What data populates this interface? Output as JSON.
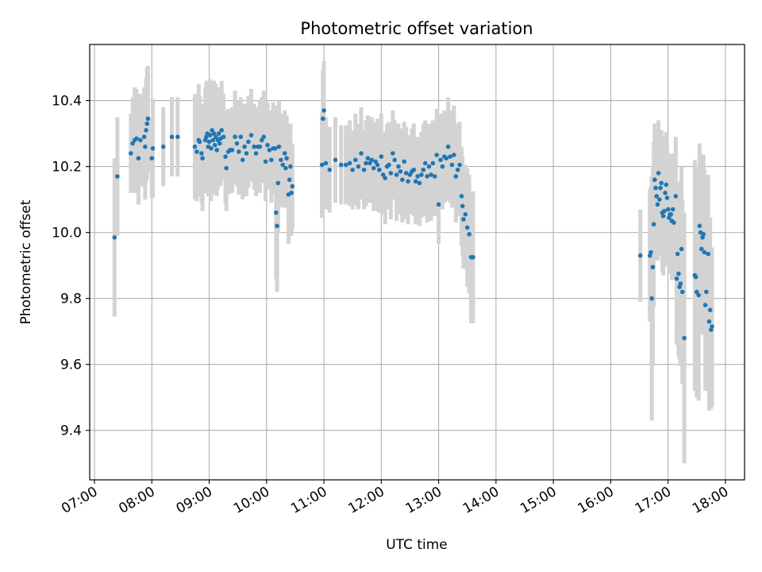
{
  "chart_data": {
    "type": "scatter",
    "title": "Photometric offset variation",
    "xlabel": "UTC time",
    "ylabel": "Photometric offset",
    "xlim": [
      "06:55",
      "18:20"
    ],
    "ylim": [
      9.25,
      10.57
    ],
    "x_ticks": [
      "07:00",
      "08:00",
      "09:00",
      "10:00",
      "11:00",
      "12:00",
      "13:00",
      "14:00",
      "15:00",
      "16:00",
      "17:00",
      "18:00"
    ],
    "y_ticks": [
      "9.4",
      "9.6",
      "9.8",
      "10.0",
      "10.2",
      "10.4"
    ],
    "grid": true,
    "legend": "none",
    "colors": {
      "point": "#1f77b4",
      "errorbar": "#d3d3d3",
      "grid": "#b0b0b0"
    },
    "series": [
      {
        "points": [
          [
            "07:21",
            9.985,
            0.24
          ],
          [
            "07:24",
            10.17,
            0.18
          ],
          [
            "07:38",
            10.24,
            0.12
          ],
          [
            "07:40",
            10.27,
            0.14
          ],
          [
            "07:42",
            10.28,
            0.16
          ],
          [
            "07:44",
            10.285,
            0.15
          ],
          [
            "07:46",
            10.225,
            0.14
          ],
          [
            "07:48",
            10.28,
            0.14
          ],
          [
            "07:52",
            10.29,
            0.15
          ],
          [
            "07:53",
            10.26,
            0.16
          ],
          [
            "07:54",
            10.31,
            0.16
          ],
          [
            "07:55",
            10.33,
            0.17
          ],
          [
            "07:56",
            10.345,
            0.16
          ],
          [
            "08:00",
            10.225,
            0.12
          ],
          [
            "08:01",
            10.255,
            0.15
          ],
          [
            "08:12",
            10.26,
            0.12
          ],
          [
            "08:21",
            10.29,
            0.12
          ],
          [
            "08:27",
            10.29,
            0.12
          ],
          [
            "08:45",
            10.26,
            0.16
          ],
          [
            "08:47",
            10.245,
            0.15
          ],
          [
            "08:49",
            10.28,
            0.17
          ],
          [
            "08:50",
            10.275,
            0.14
          ],
          [
            "08:52",
            10.24,
            0.15
          ],
          [
            "08:53",
            10.225,
            0.16
          ],
          [
            "08:56",
            10.28,
            0.16
          ],
          [
            "08:57",
            10.29,
            0.17
          ],
          [
            "08:58",
            10.3,
            0.16
          ],
          [
            "08:59",
            10.26,
            0.15
          ],
          [
            "09:00",
            10.275,
            0.16
          ],
          [
            "09:01",
            10.295,
            0.17
          ],
          [
            "09:02",
            10.255,
            0.16
          ],
          [
            "09:03",
            10.31,
            0.15
          ],
          [
            "09:04",
            10.28,
            0.14
          ],
          [
            "09:05",
            10.3,
            0.16
          ],
          [
            "09:06",
            10.265,
            0.15
          ],
          [
            "09:07",
            10.29,
            0.16
          ],
          [
            "09:08",
            10.25,
            0.14
          ],
          [
            "09:09",
            10.28,
            0.15
          ],
          [
            "09:10",
            10.3,
            0.14
          ],
          [
            "09:11",
            10.27,
            0.13
          ],
          [
            "09:12",
            10.285,
            0.14
          ],
          [
            "09:13",
            10.31,
            0.15
          ],
          [
            "09:15",
            10.29,
            0.13
          ],
          [
            "09:17",
            10.23,
            0.14
          ],
          [
            "09:18",
            10.195,
            0.13
          ],
          [
            "09:20",
            10.245,
            0.13
          ],
          [
            "09:22",
            10.25,
            0.12
          ],
          [
            "09:24",
            10.25,
            0.13
          ],
          [
            "09:27",
            10.29,
            0.14
          ],
          [
            "09:29",
            10.27,
            0.13
          ],
          [
            "09:31",
            10.245,
            0.13
          ],
          [
            "09:33",
            10.29,
            0.12
          ],
          [
            "09:35",
            10.22,
            0.12
          ],
          [
            "09:37",
            10.26,
            0.13
          ],
          [
            "09:39",
            10.24,
            0.13
          ],
          [
            "09:41",
            10.275,
            0.14
          ],
          [
            "09:44",
            10.295,
            0.14
          ],
          [
            "09:47",
            10.26,
            0.13
          ],
          [
            "09:49",
            10.24,
            0.13
          ],
          [
            "09:51",
            10.26,
            0.12
          ],
          [
            "09:53",
            10.26,
            0.14
          ],
          [
            "09:55",
            10.28,
            0.13
          ],
          [
            "09:57",
            10.29,
            0.14
          ],
          [
            "09:59",
            10.215,
            0.12
          ],
          [
            "10:01",
            10.265,
            0.13
          ],
          [
            "10:03",
            10.25,
            0.12
          ],
          [
            "10:05",
            10.22,
            0.13
          ],
          [
            "10:07",
            10.255,
            0.14
          ],
          [
            "10:09",
            10.255,
            0.13
          ],
          [
            "10:10",
            10.06,
            0.2
          ],
          [
            "10:11",
            10.02,
            0.2
          ],
          [
            "10:12",
            10.15,
            0.15
          ],
          [
            "10:13",
            10.26,
            0.14
          ],
          [
            "10:15",
            10.22,
            0.14
          ],
          [
            "10:17",
            10.205,
            0.13
          ],
          [
            "10:19",
            10.24,
            0.13
          ],
          [
            "10:20",
            10.195,
            0.12
          ],
          [
            "10:21",
            10.225,
            0.13
          ],
          [
            "10:23",
            10.115,
            0.15
          ],
          [
            "10:24",
            10.16,
            0.14
          ],
          [
            "10:25",
            10.2,
            0.13
          ],
          [
            "10:26",
            10.12,
            0.13
          ],
          [
            "10:27",
            10.14,
            0.13
          ],
          [
            "10:58",
            10.205,
            0.16
          ],
          [
            "10:59",
            10.345,
            0.15
          ],
          [
            "11:00",
            10.37,
            0.15
          ],
          [
            "11:02",
            10.21,
            0.14
          ],
          [
            "11:06",
            10.19,
            0.13
          ],
          [
            "11:12",
            10.22,
            0.13
          ],
          [
            "11:18",
            10.205,
            0.12
          ],
          [
            "11:23",
            10.205,
            0.12
          ],
          [
            "11:27",
            10.21,
            0.13
          ],
          [
            "11:30",
            10.19,
            0.12
          ],
          [
            "11:33",
            10.22,
            0.14
          ],
          [
            "11:36",
            10.2,
            0.13
          ],
          [
            "11:39",
            10.24,
            0.14
          ],
          [
            "11:42",
            10.19,
            0.12
          ],
          [
            "11:44",
            10.21,
            0.13
          ],
          [
            "11:46",
            10.225,
            0.13
          ],
          [
            "11:48",
            10.21,
            0.12
          ],
          [
            "11:50",
            10.22,
            0.13
          ],
          [
            "11:52",
            10.195,
            0.13
          ],
          [
            "11:54",
            10.215,
            0.12
          ],
          [
            "11:56",
            10.205,
            0.14
          ],
          [
            "11:58",
            10.19,
            0.13
          ],
          [
            "12:00",
            10.23,
            0.13
          ],
          [
            "12:02",
            10.175,
            0.12
          ],
          [
            "12:04",
            10.165,
            0.14
          ],
          [
            "12:06",
            10.2,
            0.13
          ],
          [
            "12:08",
            10.205,
            0.13
          ],
          [
            "12:10",
            10.18,
            0.14
          ],
          [
            "12:12",
            10.24,
            0.13
          ],
          [
            "12:14",
            10.22,
            0.12
          ],
          [
            "12:16",
            10.175,
            0.14
          ],
          [
            "12:18",
            10.2,
            0.13
          ],
          [
            "12:20",
            10.185,
            0.13
          ],
          [
            "12:22",
            10.16,
            0.13
          ],
          [
            "12:24",
            10.215,
            0.12
          ],
          [
            "12:26",
            10.18,
            0.14
          ],
          [
            "12:28",
            10.155,
            0.13
          ],
          [
            "12:30",
            10.175,
            0.12
          ],
          [
            "12:32",
            10.185,
            0.13
          ],
          [
            "12:34",
            10.19,
            0.14
          ],
          [
            "12:36",
            10.155,
            0.13
          ],
          [
            "12:38",
            10.17,
            0.12
          ],
          [
            "12:40",
            10.15,
            0.13
          ],
          [
            "12:42",
            10.175,
            0.13
          ],
          [
            "12:44",
            10.19,
            0.14
          ],
          [
            "12:46",
            10.21,
            0.13
          ],
          [
            "12:48",
            10.17,
            0.14
          ],
          [
            "12:50",
            10.2,
            0.13
          ],
          [
            "12:52",
            10.175,
            0.14
          ],
          [
            "12:54",
            10.21,
            0.13
          ],
          [
            "12:56",
            10.17,
            0.12
          ],
          [
            "12:58",
            10.235,
            0.14
          ],
          [
            "13:00",
            10.085,
            0.12
          ],
          [
            "13:02",
            10.22,
            0.14
          ],
          [
            "13:04",
            10.2,
            0.13
          ],
          [
            "13:06",
            10.23,
            0.14
          ],
          [
            "13:08",
            10.225,
            0.13
          ],
          [
            "13:10",
            10.26,
            0.15
          ],
          [
            "13:12",
            10.23,
            0.14
          ],
          [
            "13:14",
            10.205,
            0.13
          ],
          [
            "13:16",
            10.235,
            0.15
          ],
          [
            "13:18",
            10.17,
            0.14
          ],
          [
            "13:20",
            10.19,
            0.14
          ],
          [
            "13:22",
            10.205,
            0.13
          ],
          [
            "13:24",
            10.11,
            0.15
          ],
          [
            "13:25",
            10.08,
            0.15
          ],
          [
            "13:26",
            10.04,
            0.15
          ],
          [
            "13:28",
            10.055,
            0.15
          ],
          [
            "13:30",
            10.015,
            0.18
          ],
          [
            "13:32",
            9.995,
            0.18
          ],
          [
            "13:34",
            9.925,
            0.2
          ],
          [
            "13:36",
            9.925,
            0.2
          ],
          [
            "16:31",
            9.93,
            0.14
          ],
          [
            "16:41",
            9.93,
            0.2
          ],
          [
            "16:42",
            9.94,
            0.2
          ],
          [
            "16:43",
            9.8,
            0.37
          ],
          [
            "16:44",
            9.895,
            0.3
          ],
          [
            "16:45",
            10.025,
            0.25
          ],
          [
            "16:46",
            10.16,
            0.17
          ],
          [
            "16:47",
            10.135,
            0.18
          ],
          [
            "16:48",
            10.11,
            0.18
          ],
          [
            "16:49",
            10.085,
            0.17
          ],
          [
            "16:50",
            10.18,
            0.16
          ],
          [
            "16:51",
            10.1,
            0.17
          ],
          [
            "16:52",
            10.135,
            0.17
          ],
          [
            "16:53",
            10.15,
            0.16
          ],
          [
            "16:54",
            10.06,
            0.18
          ],
          [
            "16:55",
            10.05,
            0.18
          ],
          [
            "16:56",
            10.065,
            0.17
          ],
          [
            "16:57",
            10.12,
            0.17
          ],
          [
            "16:58",
            10.145,
            0.16
          ],
          [
            "16:59",
            10.105,
            0.17
          ],
          [
            "17:00",
            10.07,
            0.17
          ],
          [
            "17:01",
            10.045,
            0.17
          ],
          [
            "17:02",
            10.055,
            0.18
          ],
          [
            "17:03",
            10.055,
            0.17
          ],
          [
            "17:04",
            10.035,
            0.18
          ],
          [
            "17:05",
            10.07,
            0.17
          ],
          [
            "17:06",
            10.03,
            0.17
          ],
          [
            "17:08",
            10.11,
            0.18
          ],
          [
            "17:09",
            9.86,
            0.2
          ],
          [
            "17:10",
            9.935,
            0.22
          ],
          [
            "17:11",
            9.875,
            0.25
          ],
          [
            "17:12",
            9.835,
            0.22
          ],
          [
            "17:13",
            9.845,
            0.25
          ],
          [
            "17:14",
            9.95,
            0.25
          ],
          [
            "17:15",
            9.82,
            0.28
          ],
          [
            "17:17",
            9.68,
            0.38
          ],
          [
            "17:28",
            9.87,
            0.35
          ],
          [
            "17:29",
            9.865,
            0.33
          ],
          [
            "17:30",
            9.82,
            0.32
          ],
          [
            "17:32",
            9.81,
            0.32
          ],
          [
            "17:33",
            10.02,
            0.25
          ],
          [
            "17:34",
            10.0,
            0.24
          ],
          [
            "17:35",
            9.95,
            0.26
          ],
          [
            "17:36",
            9.985,
            0.25
          ],
          [
            "17:37",
            9.995,
            0.24
          ],
          [
            "17:38",
            9.94,
            0.25
          ],
          [
            "17:39",
            9.78,
            0.26
          ],
          [
            "17:40",
            9.82,
            0.25
          ],
          [
            "17:42",
            9.935,
            0.24
          ],
          [
            "17:43",
            9.73,
            0.27
          ],
          [
            "17:44",
            9.765,
            0.28
          ],
          [
            "17:45",
            9.705,
            0.24
          ],
          [
            "17:46",
            9.715,
            0.24
          ]
        ]
      }
    ]
  }
}
